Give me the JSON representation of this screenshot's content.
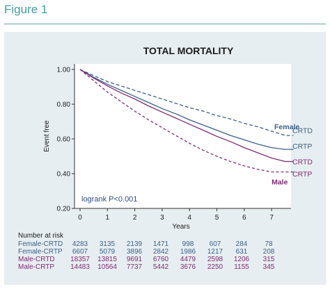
{
  "figure_label": "Figure 1",
  "colors": {
    "accent": "#3f9ea0",
    "female": "#3a5f86",
    "male": "#7e2a72",
    "panel_bg": "#e7eef1"
  },
  "chart_data": {
    "type": "line",
    "title": "TOTAL MORTALITY",
    "xlabel": "Years",
    "ylabel": "Event free",
    "xlim": [
      0,
      7.8
    ],
    "ylim": [
      0.2,
      1.0
    ],
    "x_ticks": [
      0,
      1,
      2,
      3,
      4,
      5,
      6,
      7
    ],
    "y_ticks": [
      0.2,
      0.4,
      0.6,
      0.8,
      1.0
    ],
    "y_tick_labels": [
      "0.20",
      "0.40",
      "0.60",
      "0.80",
      "1.00"
    ],
    "grid": false,
    "annotation": "logrank P<0.001",
    "group_labels": [
      {
        "text": "Female",
        "color": "female",
        "x": 7.1,
        "y": 0.673
      },
      {
        "text": "Male",
        "color": "male",
        "x": 7.0,
        "y": 0.355
      }
    ],
    "series": [
      {
        "name": "CRTD",
        "group": "Female",
        "color": "female",
        "dash": "5,3",
        "x": [
          0,
          0.5,
          1,
          1.5,
          2,
          2.5,
          3,
          3.5,
          4,
          4.5,
          5,
          5.5,
          6,
          6.5,
          7,
          7.5,
          7.8
        ],
        "y": [
          1.0,
          0.965,
          0.93,
          0.905,
          0.88,
          0.855,
          0.83,
          0.805,
          0.78,
          0.76,
          0.735,
          0.715,
          0.69,
          0.67,
          0.645,
          0.62,
          0.62
        ]
      },
      {
        "name": "CRTP",
        "group": "Female",
        "color": "female",
        "dash": "none",
        "x": [
          0,
          0.5,
          1,
          1.5,
          2,
          2.5,
          3,
          3.5,
          4,
          4.5,
          5,
          5.5,
          6,
          6.5,
          7,
          7.5,
          7.8
        ],
        "y": [
          1.0,
          0.955,
          0.915,
          0.88,
          0.845,
          0.81,
          0.775,
          0.745,
          0.71,
          0.68,
          0.65,
          0.62,
          0.595,
          0.57,
          0.55,
          0.54,
          0.54
        ]
      },
      {
        "name": "CRTD",
        "group": "Male",
        "color": "male",
        "dash": "none",
        "x": [
          0,
          0.5,
          1,
          1.5,
          2,
          2.5,
          3,
          3.5,
          4,
          4.5,
          5,
          5.5,
          6,
          6.5,
          7,
          7.5,
          7.8
        ],
        "y": [
          1.0,
          0.95,
          0.905,
          0.865,
          0.83,
          0.79,
          0.755,
          0.72,
          0.685,
          0.65,
          0.615,
          0.585,
          0.55,
          0.52,
          0.49,
          0.47,
          0.47
        ]
      },
      {
        "name": "CRTP",
        "group": "Male",
        "color": "male",
        "dash": "4,3",
        "x": [
          0,
          0.5,
          1,
          1.5,
          2,
          2.5,
          3,
          3.5,
          4,
          4.5,
          5,
          5.5,
          6,
          6.5,
          7,
          7.5,
          7.8
        ],
        "y": [
          1.0,
          0.935,
          0.87,
          0.815,
          0.76,
          0.71,
          0.665,
          0.62,
          0.575,
          0.535,
          0.5,
          0.47,
          0.445,
          0.425,
          0.41,
          0.41,
          0.41
        ]
      }
    ],
    "risk_table": {
      "title": "Number at risk",
      "rows": [
        {
          "label": "Female-CRTD",
          "color": "female",
          "values": [
            "4283",
            "3135",
            "2139",
            "1471",
            "998",
            "607",
            "284",
            "78"
          ]
        },
        {
          "label": "Female-CRTP",
          "color": "female",
          "values": [
            "6607",
            "5079",
            "3896",
            "2842",
            "1986",
            "1217",
            "631",
            "208"
          ]
        },
        {
          "label": "Male-CRTD",
          "color": "male",
          "values": [
            "18357",
            "13815",
            "9691",
            "6760",
            "4479",
            "2598",
            "1206",
            "315"
          ]
        },
        {
          "label": "Male-CRTP",
          "color": "male",
          "values": [
            "14483",
            "10564",
            "7737",
            "5442",
            "3676",
            "2250",
            "1155",
            "345"
          ]
        }
      ]
    }
  }
}
